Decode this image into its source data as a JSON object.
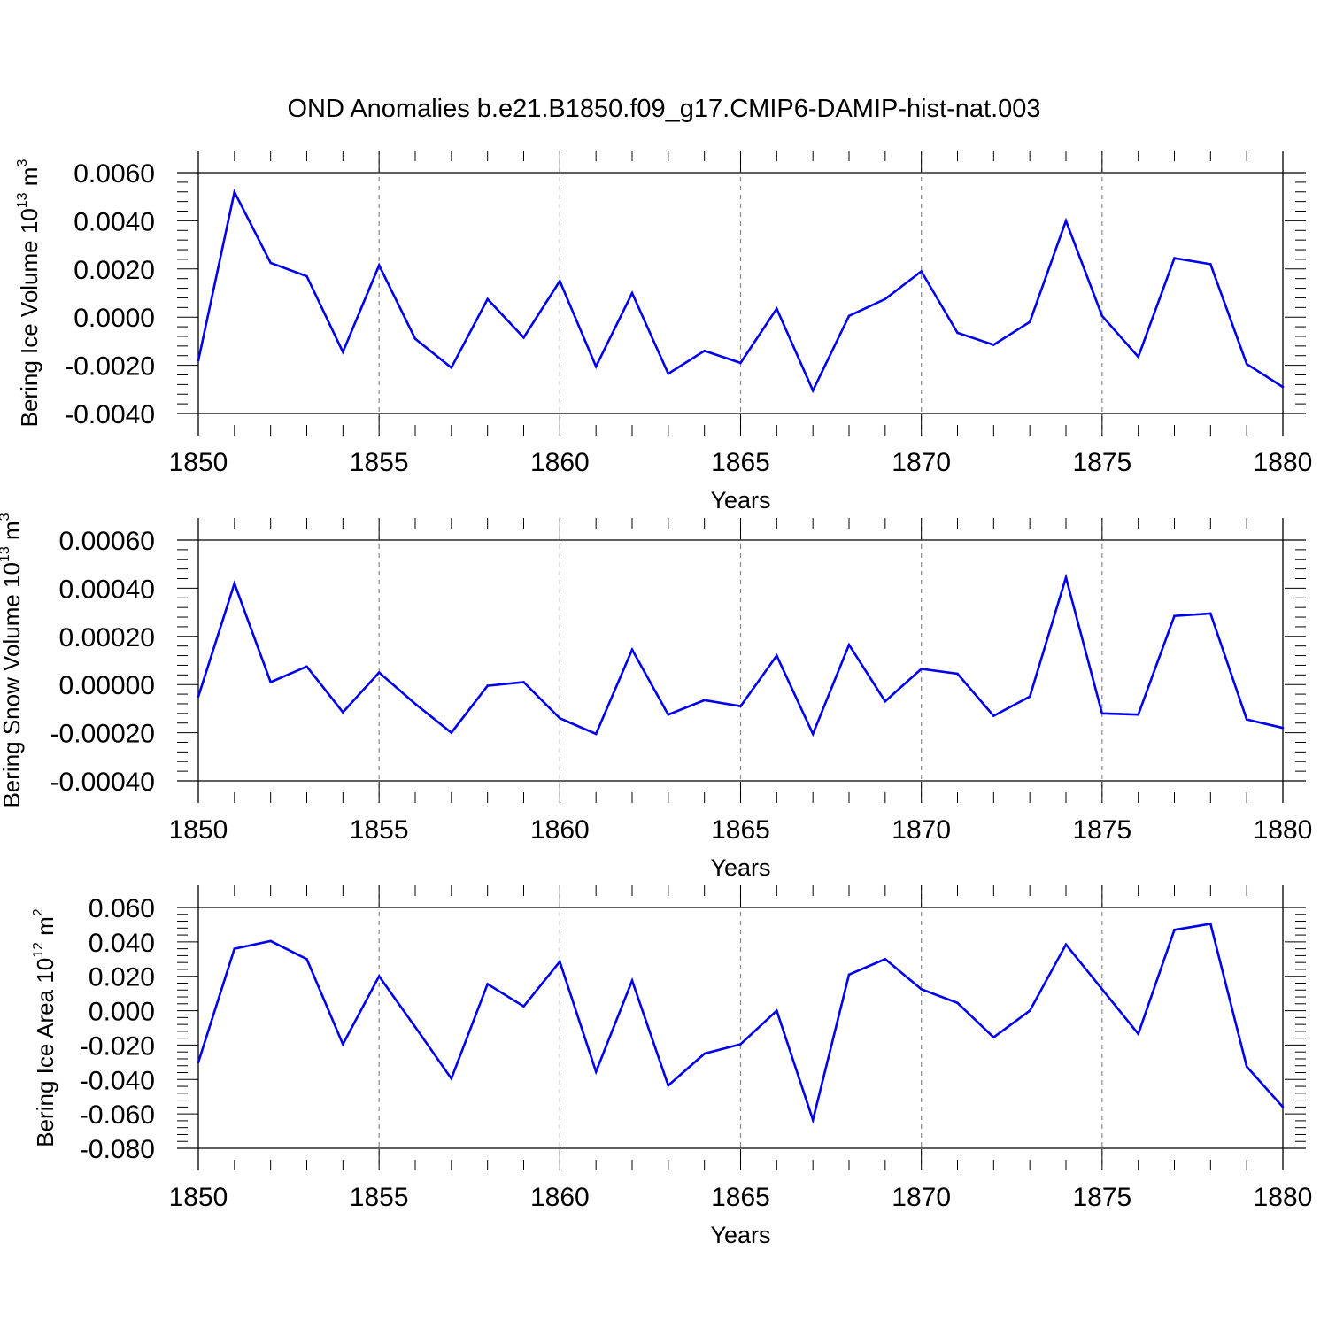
{
  "title": "OND Anomalies b.e21.B1850.f09_g17.CMIP6-DAMIP-hist-nat.003",
  "colors": {
    "line": "#0000ee",
    "axis": "#000000",
    "grid": "#888888"
  },
  "chart_data": [
    {
      "type": "line",
      "ylabel": "Bering Ice Volume 10",
      "ylabel_exp": "13",
      "ylabel_unit": " m",
      "ylabel_unit_exp": "3",
      "xlabel": "Years",
      "xlim": [
        1850,
        1880
      ],
      "ylim": [
        -0.004,
        0.006
      ],
      "x_ticks": [
        "1850",
        "1855",
        "1860",
        "1865",
        "1870",
        "1875",
        "1880"
      ],
      "y_ticks": [
        {
          "value": 0.006,
          "label": "0.0060"
        },
        {
          "value": 0.004,
          "label": "0.0040"
        },
        {
          "value": 0.002,
          "label": "0.0020"
        },
        {
          "value": 0.0,
          "label": "0.0000"
        },
        {
          "value": -0.002,
          "label": "-0.0020"
        },
        {
          "value": -0.004,
          "label": "-0.0040"
        }
      ],
      "x": [
        1850,
        1851,
        1852,
        1853,
        1854,
        1855,
        1856,
        1857,
        1858,
        1859,
        1860,
        1861,
        1862,
        1863,
        1864,
        1865,
        1866,
        1867,
        1868,
        1869,
        1870,
        1871,
        1872,
        1873,
        1874,
        1875,
        1876,
        1877,
        1878,
        1879,
        1880
      ],
      "values": [
        -0.0018,
        0.0052,
        0.00225,
        0.0017,
        -0.00145,
        0.00215,
        -0.0009,
        -0.0021,
        0.00075,
        -0.00085,
        0.0015,
        -0.00205,
        0.001,
        -0.00235,
        -0.0014,
        -0.0019,
        0.00035,
        -0.00305,
        5e-05,
        0.00075,
        0.0019,
        -0.00065,
        -0.00115,
        -0.0002,
        0.004,
        5e-05,
        -0.00165,
        0.00245,
        0.0022,
        -0.00195,
        -0.0029
      ]
    },
    {
      "type": "line",
      "ylabel": "Bering Snow Volume 10",
      "ylabel_exp": "13",
      "ylabel_unit": " m",
      "ylabel_unit_exp": "3",
      "xlabel": "Years",
      "xlim": [
        1850,
        1880
      ],
      "ylim": [
        -0.0004,
        0.0006
      ],
      "x_ticks": [
        "1850",
        "1855",
        "1860",
        "1865",
        "1870",
        "1875",
        "1880"
      ],
      "y_ticks": [
        {
          "value": 0.0006,
          "label": "0.00060"
        },
        {
          "value": 0.0004,
          "label": "0.00040"
        },
        {
          "value": 0.0002,
          "label": "0.00020"
        },
        {
          "value": 0.0,
          "label": "0.00000"
        },
        {
          "value": -0.0002,
          "label": "-0.00020"
        },
        {
          "value": -0.0004,
          "label": "-0.00040"
        }
      ],
      "x": [
        1850,
        1851,
        1852,
        1853,
        1854,
        1855,
        1856,
        1857,
        1858,
        1859,
        1860,
        1861,
        1862,
        1863,
        1864,
        1865,
        1866,
        1867,
        1868,
        1869,
        1870,
        1871,
        1872,
        1873,
        1874,
        1875,
        1876,
        1877,
        1878,
        1879,
        1880
      ],
      "values": [
        -5e-05,
        0.00042,
        1e-05,
        7.5e-05,
        -0.000115,
        5e-05,
        -8e-05,
        -0.0002,
        -5e-06,
        1e-05,
        -0.00014,
        -0.000205,
        0.000145,
        -0.000125,
        -6.5e-05,
        -9e-05,
        0.00012,
        -0.000205,
        0.000165,
        -7e-05,
        6.5e-05,
        4.5e-05,
        -0.00013,
        -5e-05,
        0.000445,
        -0.00012,
        -0.000125,
        0.000285,
        0.000295,
        -0.000145,
        -0.00018
      ]
    },
    {
      "type": "line",
      "ylabel": "Bering Ice Area 10",
      "ylabel_exp": "12",
      "ylabel_unit": " m",
      "ylabel_unit_exp": "2",
      "xlabel": "Years",
      "xlim": [
        1850,
        1880
      ],
      "ylim": [
        -0.08,
        0.06
      ],
      "x_ticks": [
        "1850",
        "1855",
        "1860",
        "1865",
        "1870",
        "1875",
        "1880"
      ],
      "y_ticks": [
        {
          "value": 0.06,
          "label": "0.060"
        },
        {
          "value": 0.04,
          "label": "0.040"
        },
        {
          "value": 0.02,
          "label": "0.020"
        },
        {
          "value": 0.0,
          "label": "0.000"
        },
        {
          "value": -0.02,
          "label": "-0.020"
        },
        {
          "value": -0.04,
          "label": "-0.040"
        },
        {
          "value": -0.06,
          "label": "-0.060"
        },
        {
          "value": -0.08,
          "label": "-0.080"
        }
      ],
      "x": [
        1850,
        1851,
        1852,
        1853,
        1854,
        1855,
        1856,
        1857,
        1858,
        1859,
        1860,
        1861,
        1862,
        1863,
        1864,
        1865,
        1866,
        1867,
        1868,
        1869,
        1870,
        1871,
        1872,
        1873,
        1874,
        1875,
        1876,
        1877,
        1878,
        1879,
        1880
      ],
      "values": [
        -0.03,
        0.036,
        0.0405,
        0.03,
        -0.0195,
        0.02,
        -0.0095,
        -0.0395,
        0.0155,
        0.0025,
        0.0285,
        -0.0355,
        0.0175,
        -0.0435,
        -0.025,
        -0.0195,
        0.0,
        -0.0635,
        0.021,
        0.03,
        0.0125,
        0.0045,
        -0.0155,
        0.0,
        0.0385,
        0.0125,
        -0.0135,
        0.047,
        0.0505,
        -0.0325,
        -0.056
      ]
    }
  ]
}
